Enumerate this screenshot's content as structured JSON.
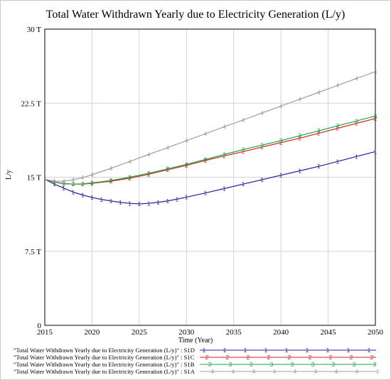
{
  "chart_data": {
    "type": "line",
    "title": "Total Water Withdrawn Yearly due to Electricity Generation (L/y)",
    "xlabel": "Time (Year)",
    "ylabel": "L/y",
    "xlim": [
      2015,
      2050
    ],
    "ylim": [
      0,
      30
    ],
    "y_unit_suffix": "T",
    "x_ticks": [
      "2015",
      "2020",
      "2025",
      "2030",
      "2035",
      "2040",
      "2045",
      "2050"
    ],
    "y_ticks": [
      "0",
      "7.5 T",
      "15 T",
      "22.5 T",
      "30 T"
    ],
    "x_tick_values": [
      2015,
      2020,
      2025,
      2030,
      2035,
      2040,
      2045,
      2050
    ],
    "y_tick_values": [
      0,
      7.5,
      15,
      22.5,
      30
    ],
    "grid": true,
    "legend_position": "bottom",
    "series": [
      {
        "name": "\"Total Water Withdrawn Yearly due to Electricity Generation (L/y)\" : S1D",
        "marker": "1",
        "color": "#2020a0",
        "x": [
          2015,
          2016,
          2017,
          2018,
          2019,
          2020,
          2021,
          2022,
          2023,
          2024,
          2025,
          2026,
          2027,
          2028,
          2029,
          2030,
          2032,
          2034,
          2036,
          2038,
          2040,
          2042,
          2044,
          2046,
          2048,
          2050
        ],
        "values": [
          14.8,
          14.3,
          13.9,
          13.5,
          13.2,
          12.95,
          12.75,
          12.6,
          12.45,
          12.35,
          12.3,
          12.35,
          12.45,
          12.6,
          12.78,
          12.98,
          13.4,
          13.85,
          14.3,
          14.75,
          15.2,
          15.65,
          16.1,
          16.6,
          17.1,
          17.6
        ]
      },
      {
        "name": "\"Total Water Withdrawn Yearly due to Electricity Generation (L/y)\" : S1C",
        "marker": "2",
        "color": "#d02020",
        "x": [
          2015,
          2016,
          2017,
          2018,
          2019,
          2020,
          2022,
          2024,
          2026,
          2028,
          2030,
          2032,
          2034,
          2036,
          2038,
          2040,
          2042,
          2044,
          2046,
          2048,
          2050
        ],
        "values": [
          14.8,
          14.5,
          14.35,
          14.3,
          14.3,
          14.38,
          14.6,
          14.9,
          15.3,
          15.75,
          16.2,
          16.7,
          17.15,
          17.6,
          18.05,
          18.5,
          18.95,
          19.45,
          19.95,
          20.45,
          20.95
        ]
      },
      {
        "name": "\"Total Water Withdrawn Yearly due to Electricity Generation (L/y)\" : S1B",
        "marker": "3",
        "color": "#20a040",
        "x": [
          2015,
          2016,
          2017,
          2018,
          2019,
          2020,
          2022,
          2024,
          2026,
          2028,
          2030,
          2032,
          2034,
          2036,
          2038,
          2040,
          2042,
          2044,
          2046,
          2048,
          2050
        ],
        "values": [
          14.8,
          14.5,
          14.35,
          14.3,
          14.33,
          14.42,
          14.67,
          15.0,
          15.4,
          15.85,
          16.3,
          16.8,
          17.3,
          17.8,
          18.25,
          18.7,
          19.2,
          19.7,
          20.2,
          20.7,
          21.2
        ]
      },
      {
        "name": "\"Total Water Withdrawn Yearly due to Electricity Generation (L/y)\" : S1A",
        "marker": "4",
        "color": "#a0a0a0",
        "x": [
          2015,
          2016,
          2017,
          2018,
          2019,
          2020,
          2022,
          2024,
          2026,
          2028,
          2030,
          2032,
          2034,
          2036,
          2038,
          2040,
          2042,
          2044,
          2046,
          2048,
          2050
        ],
        "values": [
          14.8,
          14.6,
          14.6,
          14.75,
          14.95,
          15.25,
          15.9,
          16.6,
          17.3,
          18.0,
          18.7,
          19.4,
          20.1,
          20.8,
          21.5,
          22.2,
          22.9,
          23.6,
          24.3,
          25.0,
          25.7
        ]
      }
    ]
  }
}
